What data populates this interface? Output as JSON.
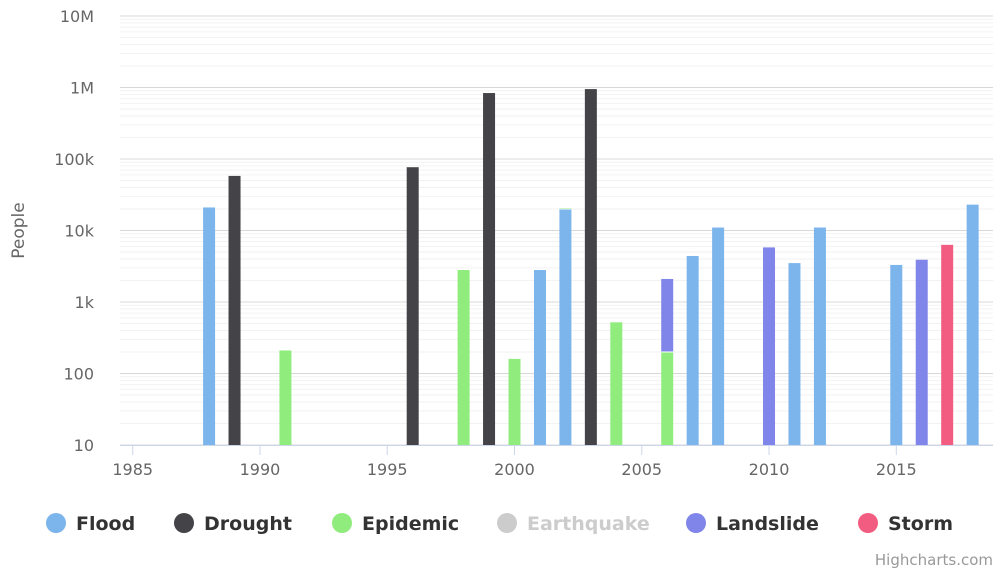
{
  "credits": "Highcharts.com",
  "chart_data": {
    "type": "bar",
    "stacking": "normal",
    "ylabel": "People",
    "xlabel": "",
    "y_scale": "log",
    "ylim": [
      10,
      10000000
    ],
    "xlim": [
      1984.5,
      2018.8
    ],
    "y_ticks": [
      10,
      100,
      1000,
      10000,
      100000,
      1000000,
      10000000
    ],
    "y_tick_labels": [
      "10",
      "100",
      "1k",
      "10k",
      "100k",
      "1M",
      "10M"
    ],
    "x_ticks": [
      1985,
      1990,
      1995,
      2000,
      2005,
      2010,
      2015
    ],
    "x_tick_labels": [
      "1985",
      "1990",
      "1995",
      "2000",
      "2005",
      "2010",
      "2015"
    ],
    "grid": true,
    "legend_position": "bottom",
    "series": [
      {
        "name": "Flood",
        "color": "#7cb5ec",
        "visible": true,
        "points": [
          {
            "x": 1988,
            "y": 21000
          },
          {
            "x": 2001,
            "y": 2800
          },
          {
            "x": 2002,
            "y": 20000
          },
          {
            "x": 2007,
            "y": 4400
          },
          {
            "x": 2008,
            "y": 11000
          },
          {
            "x": 2011,
            "y": 3500
          },
          {
            "x": 2012,
            "y": 11000
          },
          {
            "x": 2015,
            "y": 3300
          },
          {
            "x": 2018,
            "y": 23000
          }
        ]
      },
      {
        "name": "Drought",
        "color": "#434348",
        "visible": true,
        "points": [
          {
            "x": 1989,
            "y": 58000
          },
          {
            "x": 1996,
            "y": 78000
          },
          {
            "x": 1999,
            "y": 850000
          },
          {
            "x": 2003,
            "y": 950000
          }
        ]
      },
      {
        "name": "Epidemic",
        "color": "#90ed7d",
        "visible": true,
        "points": [
          {
            "x": 1991,
            "y": 210
          },
          {
            "x": 1996,
            "y": 105
          },
          {
            "x": 1998,
            "y": 2800
          },
          {
            "x": 1999,
            "y": 480
          },
          {
            "x": 2000,
            "y": 160
          },
          {
            "x": 2002,
            "y": 620
          },
          {
            "x": 2004,
            "y": 520
          },
          {
            "x": 2006,
            "y": 200
          }
        ]
      },
      {
        "name": "Earthquake",
        "color": "#cccccc",
        "visible": false,
        "points": []
      },
      {
        "name": "Landslide",
        "color": "#8085e9",
        "visible": true,
        "points": [
          {
            "x": 2006,
            "y": 1900
          },
          {
            "x": 2010,
            "y": 5800
          },
          {
            "x": 2016,
            "y": 3900
          }
        ]
      },
      {
        "name": "Storm",
        "color": "#f15c80",
        "visible": true,
        "points": [
          {
            "x": 2017,
            "y": 6300
          }
        ]
      }
    ]
  }
}
